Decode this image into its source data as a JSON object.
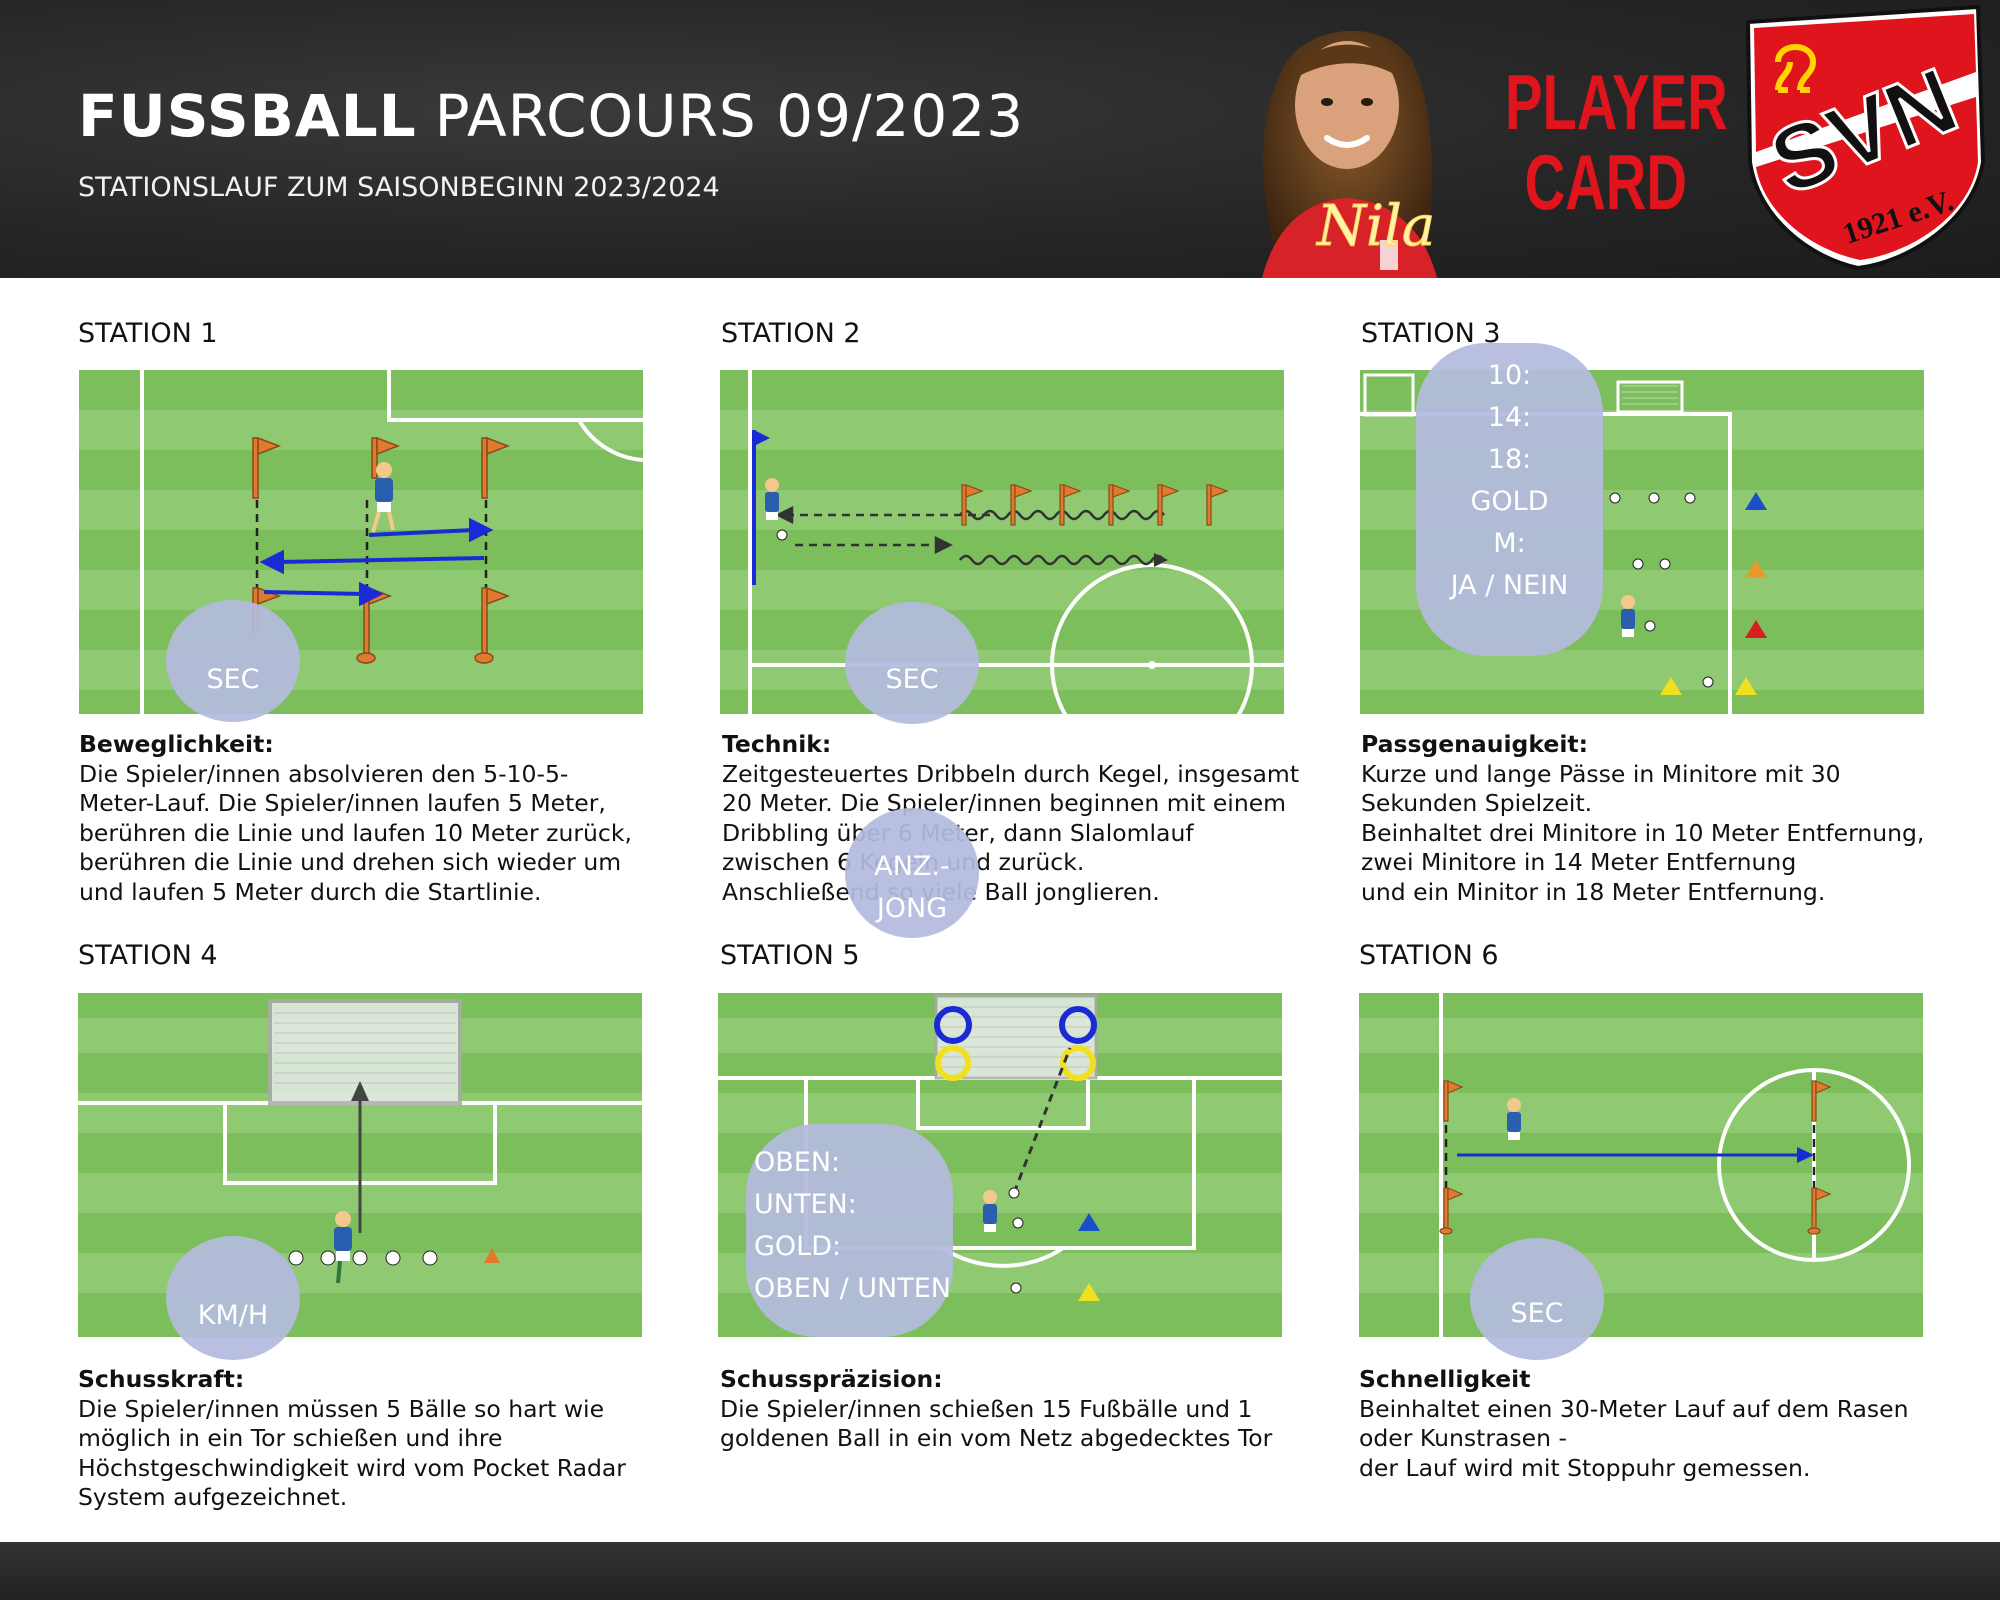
{
  "header": {
    "title_bold": "FUSSBALL",
    "title_light": "PARCOURS 09/2023",
    "subtitle": "STATIONSLAUF ZUM SAISONBEGINN 2023/2024",
    "player_signature": "Nila",
    "player_card_line1": "PLAYER",
    "player_card_line2": "CARD",
    "club_logo_text": "SVN",
    "club_logo_year": "1921 e.V."
  },
  "stations": [
    {
      "label": "STATION 1",
      "heading": "Beweglichkeit:",
      "text": "Die Spieler/innen absolvieren den 5-10-5-\nMeter-Lauf. Die Spieler/innen laufen 5 Meter,\nberühren die Linie und  laufen 10 Meter zurück,\nberühren die Linie und drehen sich wieder um\nund laufen 5 Meter durch die Startlinie.",
      "bubble": [
        "SEC"
      ]
    },
    {
      "label": "STATION 2",
      "heading": "Technik:",
      "text": "Zeitgesteuertes Dribbeln durch Kegel, insgesamt\n20 Meter. Die Spieler/innen beginnen mit einem\nDribbling über 6 Meter,  dann Slalomlauf\nzwischen 6 Kegeln und zurück.\nAnschließend so viele  Ball jonglieren.",
      "bubble": [
        "SEC"
      ],
      "bubble2": [
        "ANZ.-",
        "JONG"
      ]
    },
    {
      "label": "STATION 3",
      "heading": "Passgenauigkeit:",
      "text": "Kurze und lange Pässe in Minitore mit 30\nSekunden Spielzeit.\nBeinhaltet drei Minitore in 10 Meter Entfernung,\nzwei Minitore in 14 Meter Entfernung\nund ein Minitor in 18 Meter Entfernung.",
      "bubble": [
        "10:",
        "14:",
        "18:",
        "GOLD",
        "M:",
        "JA / NEIN"
      ]
    },
    {
      "label": "STATION 4",
      "heading": "Schusskraft:",
      "text": "Die Spieler/innen müssen 5 Bälle so hart wie\nmöglich in ein Tor schießen und ihre\nHöchstgeschwindigkeit wird vom Pocket Radar\nSystem aufgezeichnet.",
      "bubble": [
        "KM/H"
      ]
    },
    {
      "label": "STATION 5",
      "heading": "Schusspräzision:",
      "text": "Die Spieler/innen schießen 15 Fußbälle und 1\ngoldenen Ball in ein vom Netz abgedecktes Tor",
      "bubble": [
        "OBEN:",
        "UNTEN:",
        "GOLD:",
        "OBEN / UNTEN"
      ]
    },
    {
      "label": "STATION 6",
      "heading": "Schnelligkeit",
      "text": "Beinhaltet einen 30-Meter Lauf auf dem Rasen\noder Kunstrasen -\nder Lauf wird mit Stoppuhr gemessen.",
      "bubble": [
        "SEC"
      ]
    }
  ],
  "colors": {
    "header_bg": "#262626",
    "pitch_light": "#8fca72",
    "pitch_dark": "#7cbd5c",
    "bubble": "#b4badd",
    "player_card_red": "#e0141c",
    "arrow_blue": "#1a2bd6"
  }
}
